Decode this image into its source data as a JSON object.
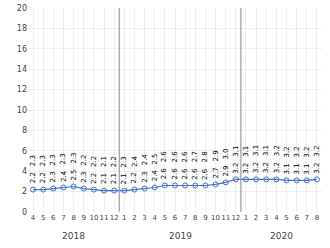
{
  "chart_data": {
    "type": "line",
    "categories": [
      [
        "2018",
        "4"
      ],
      [
        "2018",
        "5"
      ],
      [
        "2018",
        "6"
      ],
      [
        "2018",
        "7"
      ],
      [
        "2018",
        "8"
      ],
      [
        "2018",
        "9"
      ],
      [
        "2018",
        "10"
      ],
      [
        "2018",
        "11"
      ],
      [
        "2018",
        "12"
      ],
      [
        "2019",
        "1"
      ],
      [
        "2019",
        "2"
      ],
      [
        "2019",
        "3"
      ],
      [
        "2019",
        "4"
      ],
      [
        "2019",
        "5"
      ],
      [
        "2019",
        "6"
      ],
      [
        "2019",
        "7"
      ],
      [
        "2019",
        "8"
      ],
      [
        "2019",
        "9"
      ],
      [
        "2019",
        "10"
      ],
      [
        "2019",
        "11"
      ],
      [
        "2019",
        "12"
      ],
      [
        "2020",
        "1"
      ],
      [
        "2020",
        "2"
      ],
      [
        "2020",
        "3"
      ],
      [
        "2020",
        "4"
      ],
      [
        "2020",
        "5"
      ],
      [
        "2020",
        "6"
      ],
      [
        "2020",
        "7"
      ],
      [
        "2020",
        "8"
      ]
    ],
    "series": [
      {
        "type": "line",
        "color": "#4472c4",
        "marker": "circle-open",
        "data_labels": true,
        "values": [
          2.2,
          2.2,
          2.3,
          2.4,
          2.5,
          2.3,
          2.2,
          2.1,
          2.1,
          2.1,
          2.2,
          2.3,
          2.4,
          2.6,
          2.6,
          2.6,
          2.6,
          2.6,
          2.7,
          2.9,
          3.2,
          3.2,
          3.2,
          3.2,
          3.2,
          3.1,
          3.1,
          3.1,
          3.2
        ]
      },
      {
        "type": "text",
        "data_labels": true,
        "values": [
          2.3,
          2.3,
          2.3,
          2.3,
          2.3,
          2.2,
          2.2,
          2.1,
          2.2,
          2.3,
          2.4,
          2.4,
          2.5,
          2.6,
          2.6,
          2.6,
          2.7,
          2.8,
          2.9,
          3.0,
          3.1,
          3.1,
          3.1,
          3.1,
          3.2,
          3.2,
          3.2,
          3.2,
          3.2
        ],
        "value_labels": [
          "2.3",
          "2.3",
          "2.3",
          "2.3",
          "2.3",
          "2.2",
          "2.2",
          "2.1",
          "2.2",
          "2.3",
          "2.4",
          "2.4",
          "2.5",
          "2.6",
          "2.6",
          "2.6",
          "2.7",
          "2.8",
          "2.9",
          "3.0",
          "3.1",
          "3.1",
          "3.1",
          "3.1",
          "3.2",
          "3.2",
          "3.2",
          "3.2",
          "3.2"
        ]
      }
    ],
    "ylim": [
      0,
      20
    ],
    "yticks": [
      0,
      2,
      4,
      6,
      8,
      10,
      12,
      14,
      16,
      18,
      20
    ],
    "grid": true
  }
}
